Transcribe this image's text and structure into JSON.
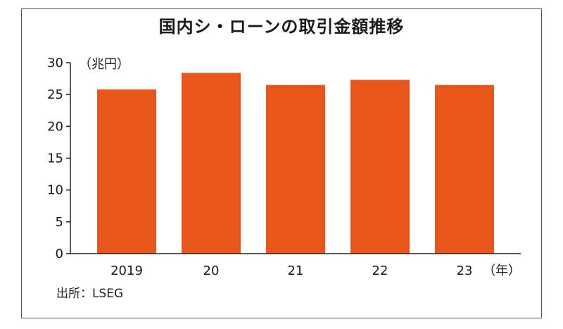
{
  "title": "国内シ・ローンの取引金額推移",
  "source": "出所：LSEG",
  "chart_data": {
    "type": "bar",
    "title": "国内シ・ローンの取引金額推移",
    "y_unit_label": "（兆円）",
    "x_unit_label": "（年）",
    "categories": [
      "2019",
      "20",
      "21",
      "22",
      "23"
    ],
    "values": [
      25.8,
      28.4,
      26.5,
      27.3,
      26.5
    ],
    "ylim": [
      0,
      30
    ],
    "yticks": [
      0,
      5,
      10,
      15,
      20,
      25,
      30
    ],
    "bar_color": "#E8561A",
    "grid": false
  }
}
